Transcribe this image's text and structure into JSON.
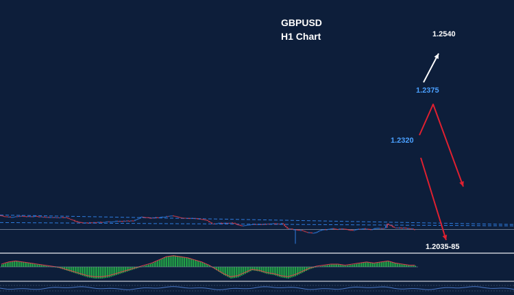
{
  "chart_data": {
    "type": "candlestick",
    "title": "GBPUSD",
    "subtitle": "H1 Chart",
    "colors": {
      "background": "#0d1e3a",
      "bull": "#2f7de1",
      "bear": "#e0404f",
      "trendline": "#2f7de1",
      "level_text_blue": "#4aa0ff",
      "level_text_white": "#ffffff",
      "arrow_red": "#e02030",
      "arrow_white": "#ffffff",
      "histogram": "#28c24a"
    },
    "ylim": [
      2.01974,
      1.21964
    ],
    "price_path": [
      [
        0,
        1.243
      ],
      [
        10,
        1.241
      ],
      [
        20,
        1.2408
      ],
      [
        30,
        1.242
      ],
      [
        40,
        1.2414
      ],
      [
        52,
        1.2418
      ],
      [
        62,
        1.241
      ],
      [
        70,
        1.2402
      ],
      [
        82,
        1.24
      ],
      [
        92,
        1.2404
      ],
      [
        98,
        1.2396
      ],
      [
        104,
        1.2368
      ],
      [
        110,
        1.2344
      ],
      [
        118,
        1.2324
      ],
      [
        125,
        1.2322
      ],
      [
        140,
        1.2328
      ],
      [
        160,
        1.234
      ],
      [
        180,
        1.2348
      ],
      [
        195,
        1.2354
      ],
      [
        200,
        1.237
      ],
      [
        206,
        1.241
      ],
      [
        214,
        1.24
      ],
      [
        224,
        1.2395
      ],
      [
        234,
        1.2402
      ],
      [
        244,
        1.242
      ],
      [
        250,
        1.243
      ],
      [
        257,
        1.2414
      ],
      [
        264,
        1.2394
      ],
      [
        272,
        1.239
      ],
      [
        284,
        1.2386
      ],
      [
        296,
        1.2376
      ],
      [
        302,
        1.2358
      ],
      [
        306,
        1.233
      ],
      [
        310,
        1.2304
      ],
      [
        318,
        1.2318
      ],
      [
        330,
        1.2316
      ],
      [
        340,
        1.2322
      ],
      [
        346,
        1.2294
      ],
      [
        352,
        1.2278
      ],
      [
        358,
        1.229
      ],
      [
        366,
        1.23
      ],
      [
        380,
        1.2298
      ],
      [
        396,
        1.2308
      ],
      [
        404,
        1.2312
      ],
      [
        412,
        1.2312
      ],
      [
        416,
        1.227
      ],
      [
        420,
        1.224
      ],
      [
        430,
        1.2222
      ],
      [
        440,
        1.221
      ],
      [
        447,
        1.2186
      ],
      [
        452,
        1.2178
      ],
      [
        456,
        1.2172
      ],
      [
        462,
        1.2186
      ],
      [
        468,
        1.2218
      ],
      [
        476,
        1.2224
      ],
      [
        484,
        1.224
      ],
      [
        492,
        1.223
      ],
      [
        500,
        1.2234
      ],
      [
        508,
        1.2222
      ],
      [
        516,
        1.2214
      ],
      [
        524,
        1.2234
      ],
      [
        532,
        1.2236
      ],
      [
        540,
        1.2226
      ],
      [
        552,
        1.2246
      ],
      [
        560,
        1.2236
      ],
      [
        565,
        1.2306
      ],
      [
        570,
        1.228
      ],
      [
        576,
        1.225
      ],
      [
        584,
        1.2248
      ],
      [
        592,
        1.2246
      ],
      [
        600,
        1.2236
      ],
      [
        606,
        1.2222
      ]
    ],
    "trendlines": [
      {
        "name": "upper",
        "from": [
          0,
          1.2436
        ],
        "to": [
          750,
          1.2298
        ]
      },
      {
        "name": "lower",
        "from": [
          0,
          1.2326
        ],
        "to": [
          750,
          1.2278
        ]
      }
    ],
    "current_price": 1.2226,
    "annotations": [
      {
        "text": "1.2540",
        "role": "target-up",
        "price": 1.254
      },
      {
        "text": "1.2375",
        "role": "resistance",
        "price": 1.2375
      },
      {
        "text": "1.2320",
        "role": "pivot",
        "price": 1.232
      },
      {
        "text": "1.2035-85",
        "role": "target-down",
        "price": 1.206
      }
    ],
    "oscillator": {
      "type": "histogram",
      "values": [
        0.2,
        0.4,
        0.5,
        0.4,
        0.3,
        0.2,
        0.1,
        0.0,
        -0.1,
        -0.3,
        -0.5,
        -0.7,
        -0.9,
        -1.0,
        -1.0,
        -0.9,
        -0.7,
        -0.5,
        -0.3,
        -0.1,
        0.1,
        0.3,
        0.6,
        0.9,
        1.0,
        0.9,
        0.8,
        0.6,
        0.4,
        0.1,
        -0.3,
        -0.7,
        -1.0,
        -0.9,
        -0.6,
        -0.3,
        -0.4,
        -0.6,
        -0.7,
        -0.9,
        -1.0,
        -0.8,
        -0.5,
        -0.2,
        0.0,
        0.1,
        0.2,
        0.2,
        0.1,
        0.2,
        0.3,
        0.4,
        0.3,
        0.4,
        0.5,
        0.3,
        0.2,
        0.1
      ]
    }
  }
}
